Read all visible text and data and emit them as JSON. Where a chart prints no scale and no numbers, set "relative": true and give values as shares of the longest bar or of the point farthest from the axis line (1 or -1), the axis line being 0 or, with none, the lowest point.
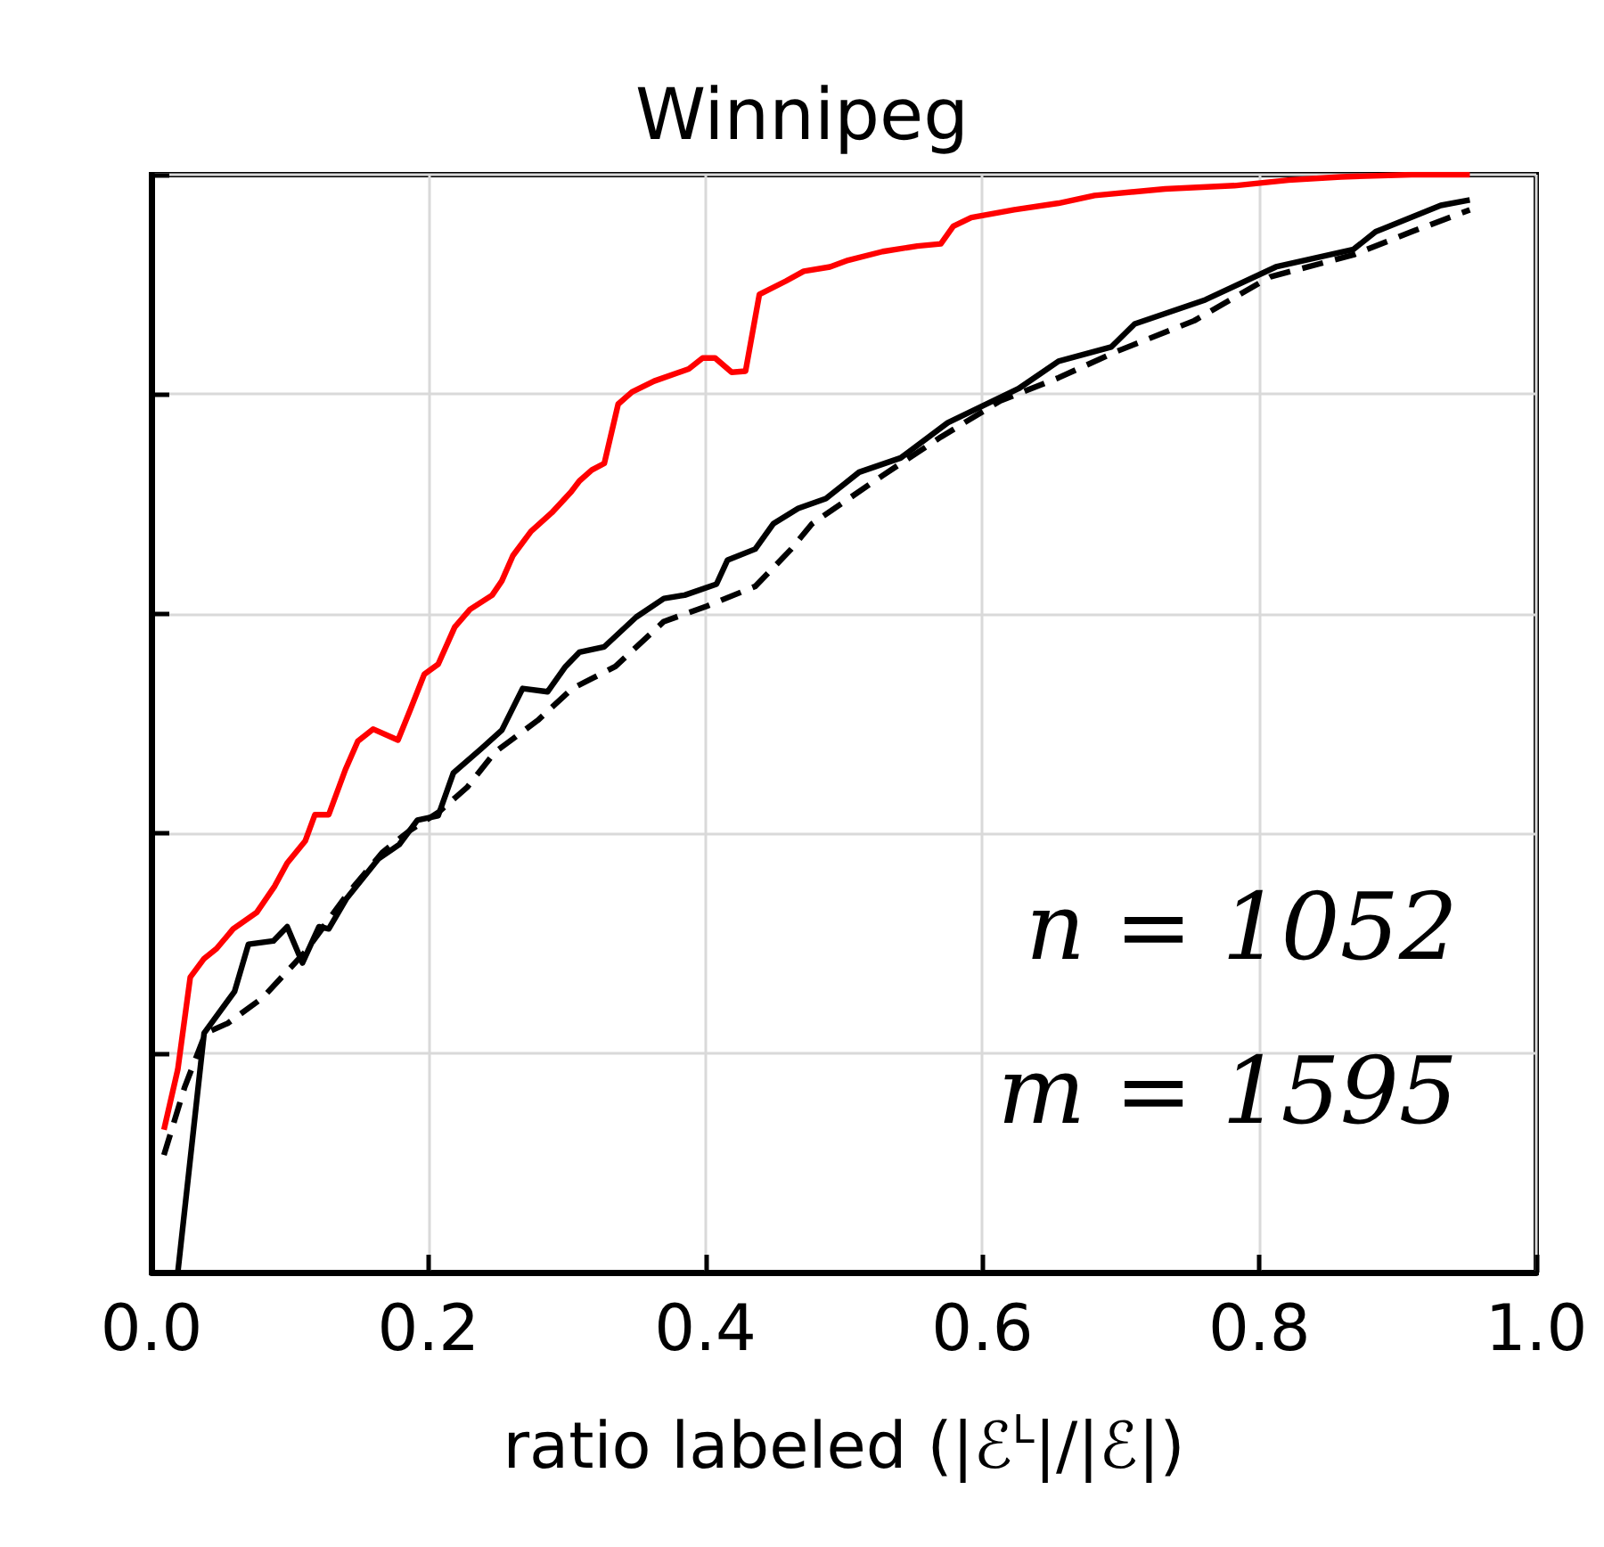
{
  "chart_data": {
    "type": "line",
    "title": "Winnipeg",
    "xlabel": "ratio labeled (|ℰ$^{L}$|/|ℰ|)",
    "relative": true,
    "grid": true,
    "xlim": [
      0,
      1
    ],
    "xticks": [
      {
        "value": 0,
        "label": "0.0"
      },
      0.2,
      0.4,
      0.6,
      0.8,
      {
        "value": 1,
        "label": "1.0"
      }
    ],
    "annotations": [
      "n = 1052",
      "m = 1595"
    ],
    "series": [
      {
        "color": "#ff0000",
        "x": [
          0.009,
          0.019,
          0.028,
          0.038,
          0.047,
          0.059,
          0.076,
          0.089,
          0.098,
          0.111,
          0.118,
          0.128,
          0.14,
          0.149,
          0.16,
          0.178,
          0.187,
          0.197,
          0.207,
          0.219,
          0.23,
          0.246,
          0.253,
          0.261,
          0.274,
          0.289,
          0.303,
          0.309,
          0.318,
          0.327,
          0.337,
          0.347,
          0.363,
          0.388,
          0.398,
          0.407,
          0.419,
          0.429,
          0.439,
          0.458,
          0.471,
          0.49,
          0.503,
          0.528,
          0.553,
          0.57,
          0.579,
          0.592,
          0.623,
          0.655,
          0.681,
          0.732,
          0.782,
          0.821,
          0.859,
          0.91,
          0.952
        ],
        "values": [
          0.13,
          0.185,
          0.269,
          0.286,
          0.295,
          0.313,
          0.328,
          0.352,
          0.373,
          0.393,
          0.417,
          0.417,
          0.458,
          0.484,
          0.495,
          0.485,
          0.513,
          0.545,
          0.554,
          0.588,
          0.604,
          0.617,
          0.63,
          0.653,
          0.675,
          0.692,
          0.711,
          0.721,
          0.731,
          0.737,
          0.791,
          0.802,
          0.812,
          0.823,
          0.833,
          0.833,
          0.82,
          0.821,
          0.891,
          0.903,
          0.912,
          0.916,
          0.922,
          0.93,
          0.935,
          0.937,
          0.953,
          0.961,
          0.968,
          0.974,
          0.981,
          0.987,
          0.99,
          0.995,
          0.998,
          1,
          1
        ]
      },
      {
        "color": "#000000",
        "x": [
          0.019,
          0.038,
          0.06,
          0.07,
          0.088,
          0.098,
          0.109,
          0.121,
          0.128,
          0.141,
          0.164,
          0.179,
          0.192,
          0.207,
          0.218,
          0.238,
          0.253,
          0.268,
          0.286,
          0.299,
          0.309,
          0.327,
          0.35,
          0.37,
          0.385,
          0.408,
          0.416,
          0.436,
          0.449,
          0.467,
          0.487,
          0.5,
          0.511,
          0.541,
          0.575,
          0.626,
          0.655,
          0.693,
          0.71,
          0.761,
          0.812,
          0.868,
          0.884,
          0.931,
          0.952
        ],
        "values": [
          0,
          0.218,
          0.256,
          0.299,
          0.302,
          0.315,
          0.282,
          0.315,
          0.313,
          0.341,
          0.377,
          0.39,
          0.412,
          0.416,
          0.455,
          0.477,
          0.494,
          0.532,
          0.529,
          0.552,
          0.565,
          0.57,
          0.597,
          0.614,
          0.617,
          0.627,
          0.649,
          0.659,
          0.682,
          0.696,
          0.705,
          0.718,
          0.729,
          0.742,
          0.774,
          0.805,
          0.83,
          0.843,
          0.864,
          0.886,
          0.916,
          0.932,
          0.948,
          0.972,
          0.977
        ]
      },
      {
        "color": "#000000",
        "line_style": "dashed",
        "x": [
          0.009,
          0.024,
          0.039,
          0.055,
          0.08,
          0.111,
          0.141,
          0.167,
          0.187,
          0.207,
          0.228,
          0.248,
          0.279,
          0.304,
          0.335,
          0.37,
          0.401,
          0.436,
          0.462,
          0.477,
          0.528,
          0.57,
          0.613,
          0.655,
          0.697,
          0.753,
          0.808,
          0.868,
          0.91,
          0.952
        ],
        "values": [
          0.107,
          0.169,
          0.218,
          0.227,
          0.25,
          0.292,
          0.344,
          0.383,
          0.403,
          0.419,
          0.442,
          0.474,
          0.503,
          0.532,
          0.552,
          0.593,
          0.607,
          0.625,
          0.659,
          0.682,
          0.726,
          0.761,
          0.794,
          0.815,
          0.839,
          0.867,
          0.907,
          0.927,
          0.948,
          0.968
        ]
      }
    ]
  }
}
